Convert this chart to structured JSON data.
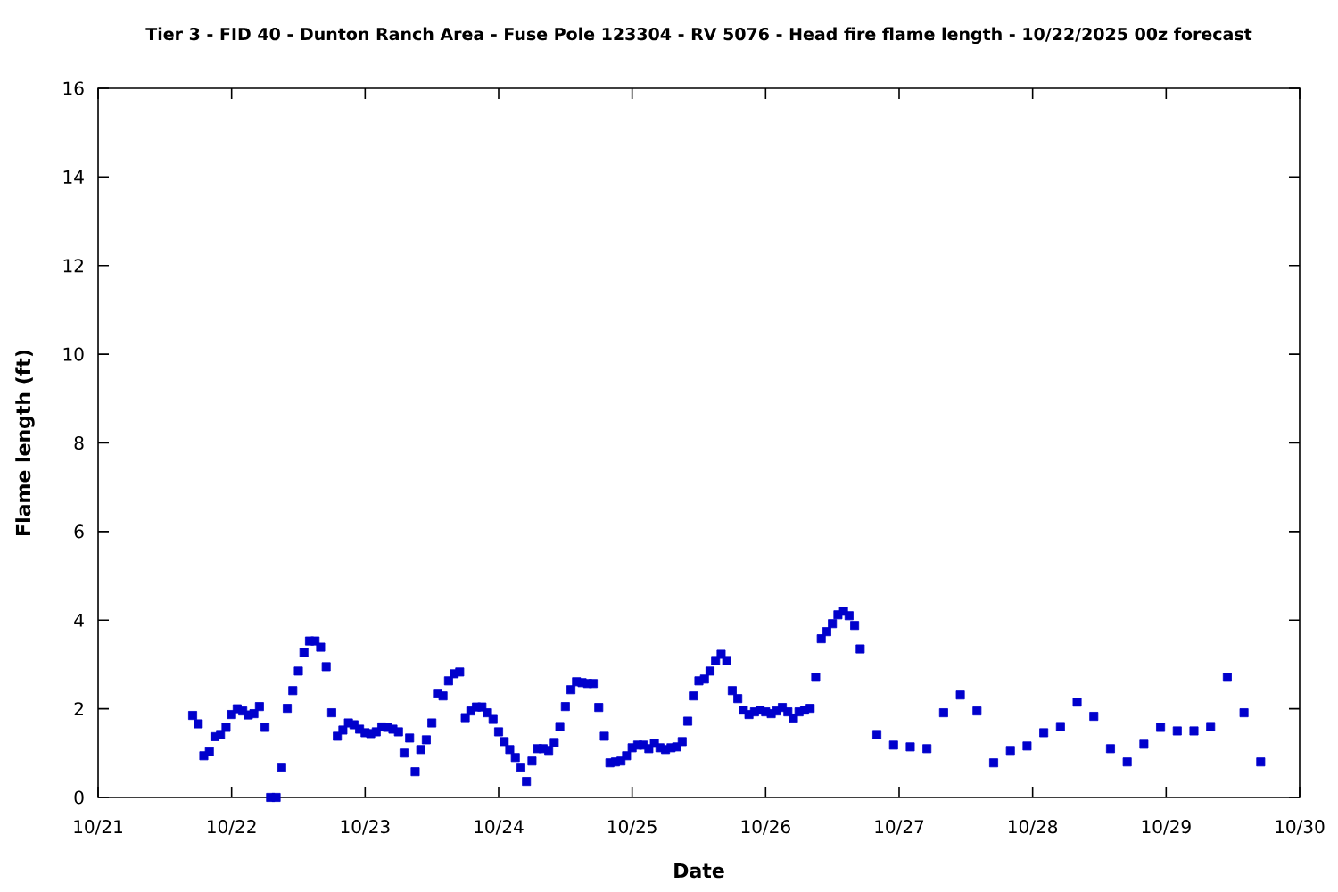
{
  "chart_data": {
    "type": "scatter",
    "title": "Tier 3 - FID 40 - Dunton Ranch Area - Fuse Pole 123304 - RV 5076 - Head fire flame length - 10/22/2025 00z forecast",
    "xlabel": "Date",
    "ylabel": "Flame length (ft)",
    "x": [
      "2025-10-21T17:00",
      "2025-10-21T18:00",
      "2025-10-21T19:00",
      "2025-10-21T20:00",
      "2025-10-21T21:00",
      "2025-10-21T22:00",
      "2025-10-21T23:00",
      "2025-10-22T00:00",
      "2025-10-22T01:00",
      "2025-10-22T02:00",
      "2025-10-22T03:00",
      "2025-10-22T04:00",
      "2025-10-22T05:00",
      "2025-10-22T06:00",
      "2025-10-22T07:00",
      "2025-10-22T08:00",
      "2025-10-22T09:00",
      "2025-10-22T10:00",
      "2025-10-22T11:00",
      "2025-10-22T12:00",
      "2025-10-22T13:00",
      "2025-10-22T14:00",
      "2025-10-22T15:00",
      "2025-10-22T16:00",
      "2025-10-22T17:00",
      "2025-10-22T18:00",
      "2025-10-22T19:00",
      "2025-10-22T20:00",
      "2025-10-22T21:00",
      "2025-10-22T22:00",
      "2025-10-22T23:00",
      "2025-10-23T00:00",
      "2025-10-23T01:00",
      "2025-10-23T02:00",
      "2025-10-23T03:00",
      "2025-10-23T04:00",
      "2025-10-23T05:00",
      "2025-10-23T06:00",
      "2025-10-23T07:00",
      "2025-10-23T08:00",
      "2025-10-23T09:00",
      "2025-10-23T10:00",
      "2025-10-23T11:00",
      "2025-10-23T12:00",
      "2025-10-23T13:00",
      "2025-10-23T14:00",
      "2025-10-23T15:00",
      "2025-10-23T16:00",
      "2025-10-23T17:00",
      "2025-10-23T18:00",
      "2025-10-23T19:00",
      "2025-10-23T20:00",
      "2025-10-23T21:00",
      "2025-10-23T22:00",
      "2025-10-23T23:00",
      "2025-10-24T00:00",
      "2025-10-24T01:00",
      "2025-10-24T02:00",
      "2025-10-24T03:00",
      "2025-10-24T04:00",
      "2025-10-24T05:00",
      "2025-10-24T06:00",
      "2025-10-24T07:00",
      "2025-10-24T08:00",
      "2025-10-24T09:00",
      "2025-10-24T10:00",
      "2025-10-24T11:00",
      "2025-10-24T12:00",
      "2025-10-24T13:00",
      "2025-10-24T14:00",
      "2025-10-24T15:00",
      "2025-10-24T16:00",
      "2025-10-24T17:00",
      "2025-10-24T18:00",
      "2025-10-24T19:00",
      "2025-10-24T20:00",
      "2025-10-24T21:00",
      "2025-10-24T22:00",
      "2025-10-24T23:00",
      "2025-10-25T00:00",
      "2025-10-25T01:00",
      "2025-10-25T02:00",
      "2025-10-25T03:00",
      "2025-10-25T04:00",
      "2025-10-25T05:00",
      "2025-10-25T06:00",
      "2025-10-25T07:00",
      "2025-10-25T08:00",
      "2025-10-25T09:00",
      "2025-10-25T10:00",
      "2025-10-25T11:00",
      "2025-10-25T12:00",
      "2025-10-25T13:00",
      "2025-10-25T14:00",
      "2025-10-25T15:00",
      "2025-10-25T16:00",
      "2025-10-25T17:00",
      "2025-10-25T18:00",
      "2025-10-25T19:00",
      "2025-10-25T20:00",
      "2025-10-25T21:00",
      "2025-10-25T22:00",
      "2025-10-25T23:00",
      "2025-10-26T00:00",
      "2025-10-26T01:00",
      "2025-10-26T02:00",
      "2025-10-26T03:00",
      "2025-10-26T04:00",
      "2025-10-26T05:00",
      "2025-10-26T06:00",
      "2025-10-26T07:00",
      "2025-10-26T08:00",
      "2025-10-26T09:00",
      "2025-10-26T10:00",
      "2025-10-26T11:00",
      "2025-10-26T12:00",
      "2025-10-26T13:00",
      "2025-10-26T14:00",
      "2025-10-26T15:00",
      "2025-10-26T16:00",
      "2025-10-26T17:00",
      "2025-10-26T20:00",
      "2025-10-26T23:00",
      "2025-10-27T02:00",
      "2025-10-27T05:00",
      "2025-10-27T08:00",
      "2025-10-27T11:00",
      "2025-10-27T14:00",
      "2025-10-27T17:00",
      "2025-10-27T20:00",
      "2025-10-27T23:00",
      "2025-10-28T02:00",
      "2025-10-28T05:00",
      "2025-10-28T08:00",
      "2025-10-28T11:00",
      "2025-10-28T14:00",
      "2025-10-28T17:00",
      "2025-10-28T20:00",
      "2025-10-28T23:00",
      "2025-10-29T02:00",
      "2025-10-29T05:00",
      "2025-10-29T08:00",
      "2025-10-29T11:00",
      "2025-10-29T14:00",
      "2025-10-29T17:00"
    ],
    "values": [
      1.85,
      1.66,
      0.94,
      1.03,
      1.37,
      1.42,
      1.58,
      1.87,
      2.0,
      1.95,
      1.86,
      1.89,
      2.05,
      1.58,
      0,
      0,
      0.68,
      2.01,
      2.41,
      2.85,
      3.27,
      3.53,
      3.53,
      3.39,
      2.95,
      1.91,
      1.38,
      1.52,
      1.68,
      1.64,
      1.54,
      1.46,
      1.44,
      1.48,
      1.59,
      1.58,
      1.54,
      1.48,
      1.0,
      1.34,
      0.58,
      1.08,
      1.3,
      1.68,
      2.35,
      2.29,
      2.63,
      2.79,
      2.83,
      1.8,
      1.95,
      2.04,
      2.04,
      1.91,
      1.76,
      1.48,
      1.26,
      1.08,
      0.9,
      0.68,
      0.36,
      0.82,
      1.1,
      1.1,
      1.06,
      1.24,
      1.6,
      2.05,
      2.43,
      2.61,
      2.59,
      2.57,
      2.57,
      2.03,
      1.38,
      0.78,
      0.8,
      0.82,
      0.94,
      1.12,
      1.18,
      1.18,
      1.1,
      1.22,
      1.12,
      1.08,
      1.12,
      1.14,
      1.26,
      1.72,
      2.29,
      2.63,
      2.67,
      2.85,
      3.09,
      3.23,
      3.09,
      2.41,
      2.23,
      1.97,
      1.87,
      1.93,
      1.97,
      1.93,
      1.89,
      1.95,
      2.03,
      1.93,
      1.79,
      1.93,
      1.97,
      2.01,
      2.71,
      3.58,
      3.74,
      3.92,
      4.12,
      4.2,
      4.1,
      3.88,
      3.35,
      1.42,
      1.18,
      1.14,
      1.1,
      1.91,
      2.31,
      1.95,
      0.78,
      1.06,
      1.16,
      1.46,
      1.6,
      2.15,
      1.83,
      1.1,
      0.8,
      1.2,
      1.58,
      1.5,
      1.5,
      1.6,
      2.71,
      1.91,
      0.8
    ],
    "color": "#0000cc",
    "marker": "square",
    "xlim": [
      "2025-10-21",
      "2025-10-30"
    ],
    "xticks": [
      {
        "value": "2025-10-21",
        "label": "10/21"
      },
      {
        "value": "2025-10-22",
        "label": "10/22"
      },
      {
        "value": "2025-10-23",
        "label": "10/23"
      },
      {
        "value": "2025-10-24",
        "label": "10/24"
      },
      {
        "value": "2025-10-25",
        "label": "10/25"
      },
      {
        "value": "2025-10-26",
        "label": "10/26"
      },
      {
        "value": "2025-10-27",
        "label": "10/27"
      },
      {
        "value": "2025-10-28",
        "label": "10/28"
      },
      {
        "value": "2025-10-29",
        "label": "10/29"
      },
      {
        "value": "2025-10-30",
        "label": "10/30"
      }
    ],
    "ylim": [
      0,
      16
    ],
    "yticks": [
      0,
      2,
      4,
      6,
      8,
      10,
      12,
      14,
      16
    ]
  }
}
